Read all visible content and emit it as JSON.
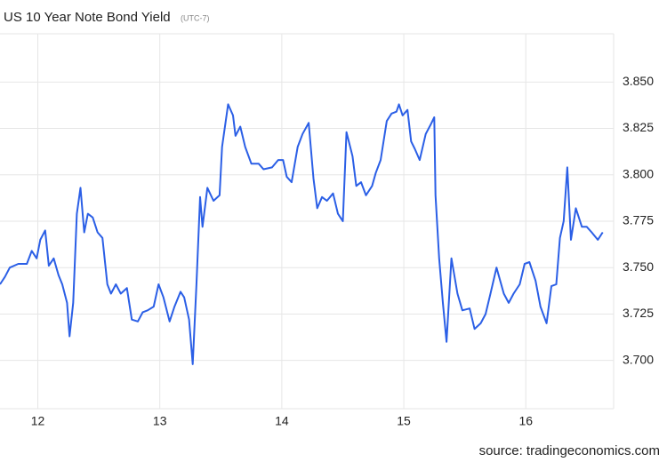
{
  "chart_data": {
    "type": "line",
    "title": "US 10 Year Note Bond Yield",
    "subtitle": "(UTC-7)",
    "source": "source: tradingeconomics.com",
    "x": [
      11.69,
      11.73,
      11.77,
      11.84,
      11.91,
      11.95,
      11.99,
      12.02,
      12.06,
      12.09,
      12.13,
      12.17,
      12.2,
      12.24,
      12.26,
      12.29,
      12.32,
      12.35,
      12.38,
      12.41,
      12.45,
      12.49,
      12.53,
      12.57,
      12.6,
      12.64,
      12.68,
      12.73,
      12.77,
      12.82,
      12.86,
      12.9,
      12.95,
      12.99,
      13.03,
      13.08,
      13.12,
      13.17,
      13.2,
      13.24,
      13.27,
      13.3,
      13.33,
      13.35,
      13.39,
      13.44,
      13.49,
      13.51,
      13.56,
      13.6,
      13.62,
      13.66,
      13.7,
      13.75,
      13.81,
      13.85,
      13.92,
      13.97,
      14.01,
      14.04,
      14.08,
      14.13,
      14.17,
      14.22,
      14.26,
      14.29,
      14.33,
      14.37,
      14.42,
      14.46,
      14.5,
      14.53,
      14.58,
      14.61,
      14.65,
      14.69,
      14.74,
      14.77,
      14.81,
      14.86,
      14.9,
      14.94,
      14.96,
      14.99,
      15.03,
      15.06,
      15.09,
      15.13,
      15.18,
      15.22,
      15.25,
      15.26,
      15.29,
      15.32,
      15.35,
      15.39,
      15.44,
      15.48,
      15.54,
      15.58,
      15.63,
      15.67,
      15.71,
      15.76,
      15.82,
      15.86,
      15.9,
      15.95,
      15.99,
      16.03,
      16.08,
      16.12,
      16.17,
      16.21,
      16.25,
      16.28,
      16.31,
      16.34,
      16.37,
      16.41,
      16.46,
      16.5,
      16.54,
      16.59,
      16.63
    ],
    "series": [
      {
        "name": "US 10Y",
        "color": "#2b5fe6",
        "values": [
          3.741,
          3.745,
          3.75,
          3.752,
          3.752,
          3.759,
          3.755,
          3.765,
          3.77,
          3.751,
          3.755,
          3.746,
          3.741,
          3.731,
          3.713,
          3.731,
          3.779,
          3.793,
          3.769,
          3.779,
          3.777,
          3.769,
          3.766,
          3.741,
          3.736,
          3.741,
          3.736,
          3.739,
          3.722,
          3.721,
          3.726,
          3.727,
          3.729,
          3.741,
          3.734,
          3.721,
          3.729,
          3.737,
          3.734,
          3.722,
          3.698,
          3.741,
          3.788,
          3.772,
          3.793,
          3.786,
          3.789,
          3.815,
          3.838,
          3.832,
          3.821,
          3.826,
          3.815,
          3.806,
          3.806,
          3.803,
          3.804,
          3.808,
          3.808,
          3.799,
          3.796,
          3.815,
          3.822,
          3.828,
          3.798,
          3.782,
          3.788,
          3.786,
          3.79,
          3.779,
          3.775,
          3.823,
          3.81,
          3.794,
          3.796,
          3.789,
          3.794,
          3.801,
          3.808,
          3.829,
          3.833,
          3.834,
          3.838,
          3.832,
          3.835,
          3.818,
          3.814,
          3.808,
          3.822,
          3.827,
          3.831,
          3.789,
          3.755,
          3.731,
          3.71,
          3.755,
          3.736,
          3.727,
          3.728,
          3.717,
          3.72,
          3.725,
          3.736,
          3.75,
          3.736,
          3.731,
          3.736,
          3.741,
          3.752,
          3.753,
          3.743,
          3.729,
          3.72,
          3.74,
          3.741,
          3.766,
          3.775,
          3.804,
          3.765,
          3.782,
          3.772,
          3.772,
          3.769,
          3.765,
          3.769
        ]
      }
    ],
    "xlim": [
      11.69,
      16.72
    ],
    "xticks": [
      12,
      13,
      14,
      15,
      16
    ],
    "ylim": [
      3.674,
      3.876
    ],
    "yticks": [
      {
        "value": 3.7,
        "label": "3.700"
      },
      {
        "value": 3.725,
        "label": "3.725"
      },
      {
        "value": 3.75,
        "label": "3.750"
      },
      {
        "value": 3.775,
        "label": "3.775"
      },
      {
        "value": 3.8,
        "label": "3.800"
      },
      {
        "value": 3.825,
        "label": "3.825"
      },
      {
        "value": 3.85,
        "label": "3.850"
      }
    ],
    "grid": true
  }
}
